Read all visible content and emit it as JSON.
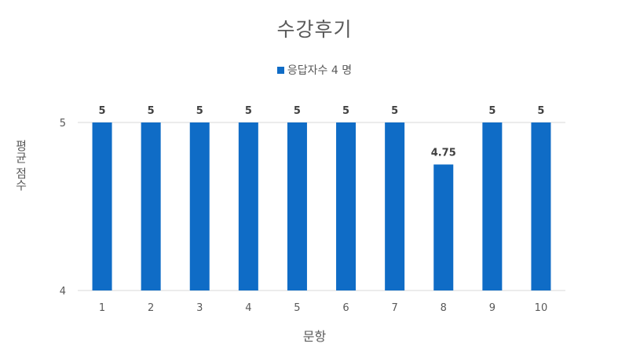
{
  "chart_data": {
    "type": "bar",
    "title": "수강후기",
    "categories": [
      "1",
      "2",
      "3",
      "4",
      "5",
      "6",
      "7",
      "8",
      "9",
      "10"
    ],
    "series": [
      {
        "name": "응답자수 4 명",
        "values": [
          5,
          5,
          5,
          5,
          5,
          5,
          5,
          4.75,
          5,
          5
        ],
        "data_labels": [
          "5",
          "5",
          "5",
          "5",
          "5",
          "5",
          "5",
          "4.75",
          "5",
          "5"
        ],
        "color": "#0f6cc6"
      }
    ],
    "xlabel": "문항",
    "ylabel": "평균 점수",
    "ylim": [
      4,
      5
    ],
    "yticks": [
      "4",
      "5"
    ],
    "grid": true,
    "legend_position": "top"
  }
}
